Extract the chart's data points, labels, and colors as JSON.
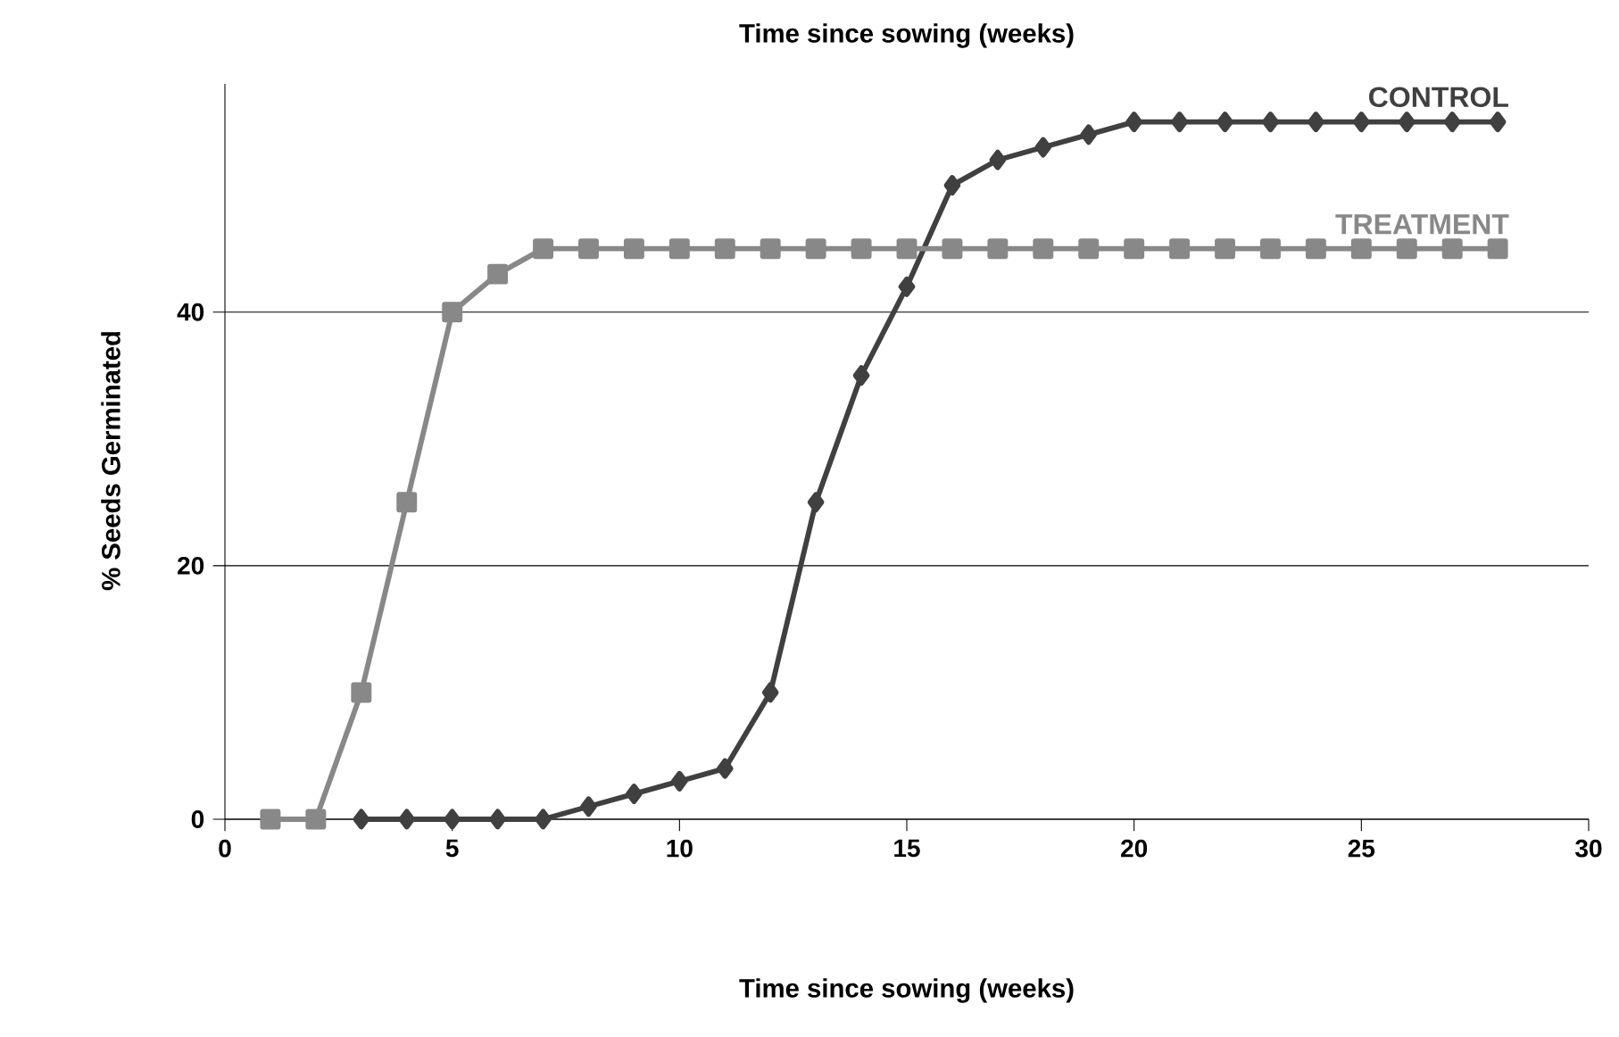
{
  "chart_data": {
    "type": "line",
    "title": "Time since sowing (weeks)",
    "xlabel": "Time since sowing (weeks)",
    "ylabel": "% Seeds Germinated",
    "xlim": [
      0,
      30
    ],
    "xticks": [
      0,
      5,
      10,
      15,
      20,
      25,
      30
    ],
    "ylim": [
      0,
      58
    ],
    "yticks": [
      0,
      20,
      40
    ],
    "grid": "y",
    "series": [
      {
        "name": "CONTROL",
        "color": "#404040",
        "marker": "diamond",
        "x": [
          3,
          4,
          5,
          6,
          7,
          8,
          9,
          10,
          11,
          12,
          13,
          14,
          15,
          16,
          17,
          18,
          19,
          20,
          21,
          22,
          23,
          24,
          25,
          26,
          27,
          28
        ],
        "values": [
          0,
          0,
          0,
          0,
          0,
          1,
          2,
          3,
          4,
          10,
          25,
          35,
          42,
          50,
          52,
          53,
          54,
          55,
          55,
          55,
          55,
          55,
          55,
          55,
          55,
          55
        ]
      },
      {
        "name": "TREATMENT",
        "color": "#888888",
        "marker": "square",
        "x": [
          1,
          2,
          3,
          4,
          5,
          6,
          7,
          8,
          9,
          10,
          11,
          12,
          13,
          14,
          15,
          16,
          17,
          18,
          19,
          20,
          21,
          22,
          23,
          24,
          25,
          26,
          27,
          28
        ],
        "values": [
          0,
          0,
          10,
          25,
          40,
          43,
          45,
          45,
          45,
          45,
          45,
          45,
          45,
          45,
          45,
          45,
          45,
          45,
          45,
          45,
          45,
          45,
          45,
          45,
          45,
          45,
          45,
          45
        ]
      }
    ]
  }
}
